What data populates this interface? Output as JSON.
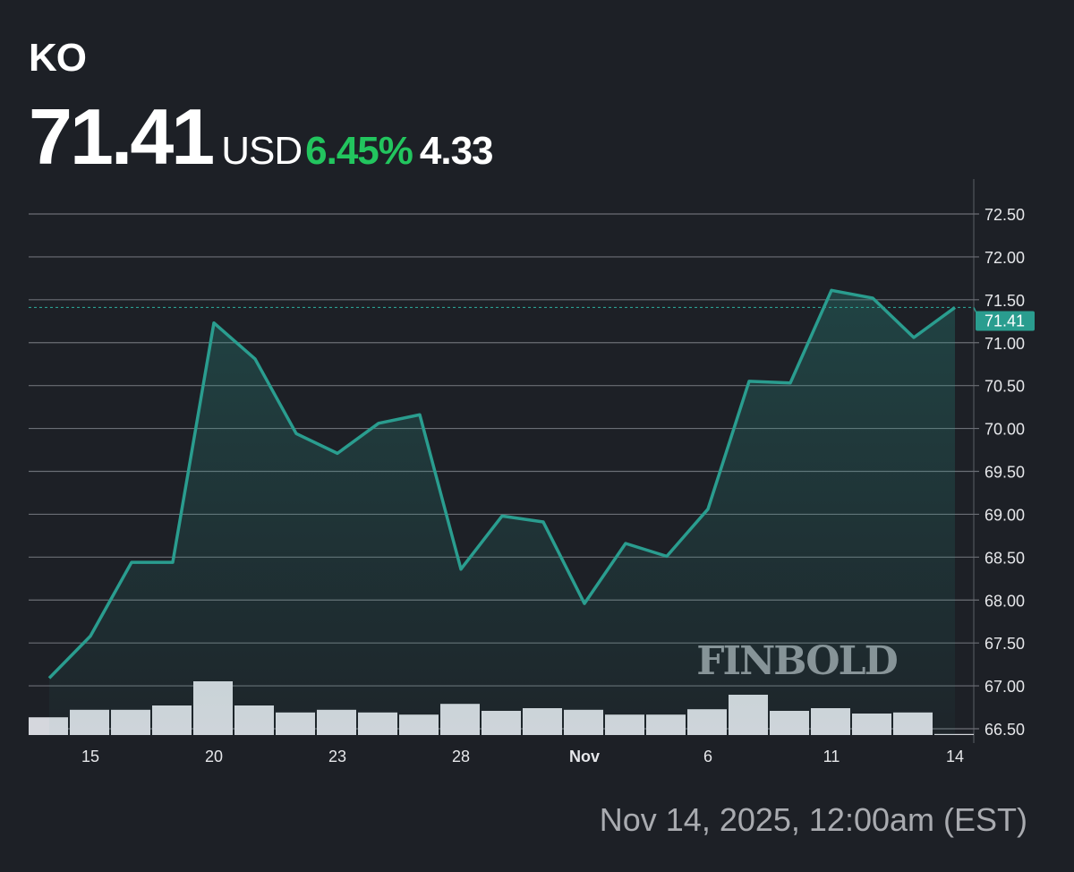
{
  "header": {
    "ticker": "KO",
    "price": "71.41",
    "currency": "USD",
    "change_pct": "6.45%",
    "change_abs": "4.33"
  },
  "timestamp": "Nov 14, 2025, 12:00am (EST)",
  "watermark": "FINBOLD",
  "colors": {
    "background": "#1d2026",
    "line": "#2a9d8f",
    "positive": "#22c55e",
    "volume": "#d5d7dd",
    "grid": "#6b6e75"
  },
  "chart_data": {
    "type": "line",
    "title": "",
    "xlabel": "",
    "ylabel": "",
    "ylim": [
      66.5,
      72.5
    ],
    "y_ticks": [
      "66.50",
      "67.00",
      "67.50",
      "68.00",
      "68.50",
      "69.00",
      "69.50",
      "70.00",
      "70.50",
      "71.00",
      "71.50",
      "72.00",
      "72.50"
    ],
    "x_tick_labels": [
      {
        "label": "15",
        "index": 1
      },
      {
        "label": "20",
        "index": 4
      },
      {
        "label": "23",
        "index": 7
      },
      {
        "label": "28",
        "index": 10
      },
      {
        "label": "Nov",
        "index": 13
      },
      {
        "label": "6",
        "index": 16
      },
      {
        "label": "11",
        "index": 19
      },
      {
        "label": "14",
        "index": 22
      }
    ],
    "values": [
      67.09,
      67.58,
      68.44,
      68.44,
      71.23,
      70.81,
      69.94,
      69.71,
      70.06,
      70.16,
      68.36,
      68.98,
      68.91,
      67.96,
      68.66,
      68.51,
      69.06,
      70.55,
      70.53,
      71.61,
      71.52,
      71.06,
      71.41
    ],
    "volume_relative": [
      0.33,
      0.47,
      0.47,
      0.55,
      1.0,
      0.55,
      0.42,
      0.47,
      0.42,
      0.38,
      0.58,
      0.45,
      0.5,
      0.47,
      0.38,
      0.38,
      0.48,
      0.75,
      0.45,
      0.5,
      0.4,
      0.42,
      0.02
    ],
    "last_price_label": "71.41",
    "grid": true,
    "area_fill": true
  }
}
